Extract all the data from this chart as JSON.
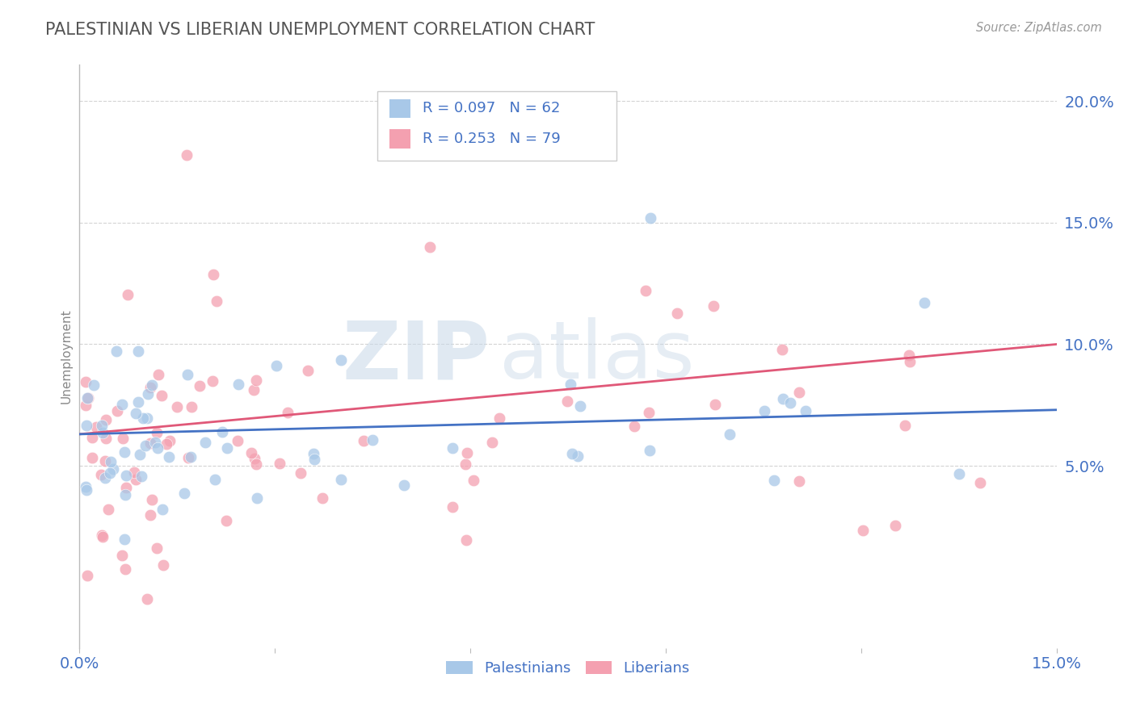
{
  "title": "PALESTINIAN VS LIBERIAN UNEMPLOYMENT CORRELATION CHART",
  "source": "Source: ZipAtlas.com",
  "ylabel": "Unemployment",
  "xlim": [
    0.0,
    0.15
  ],
  "ylim": [
    -0.025,
    0.215
  ],
  "yticks": [
    0.05,
    0.1,
    0.15,
    0.2
  ],
  "ytick_labels": [
    "5.0%",
    "10.0%",
    "15.0%",
    "20.0%"
  ],
  "palestinians_R": 0.097,
  "palestinians_N": 62,
  "liberians_R": 0.253,
  "liberians_N": 79,
  "blue_color": "#a8c8e8",
  "pink_color": "#f4a0b0",
  "blue_line_color": "#4472c4",
  "pink_line_color": "#e05878",
  "background_color": "#ffffff",
  "grid_color": "#c8c8c8",
  "title_color": "#555555",
  "axis_label_color": "#4472c4",
  "watermark_color": "#d0dce8"
}
